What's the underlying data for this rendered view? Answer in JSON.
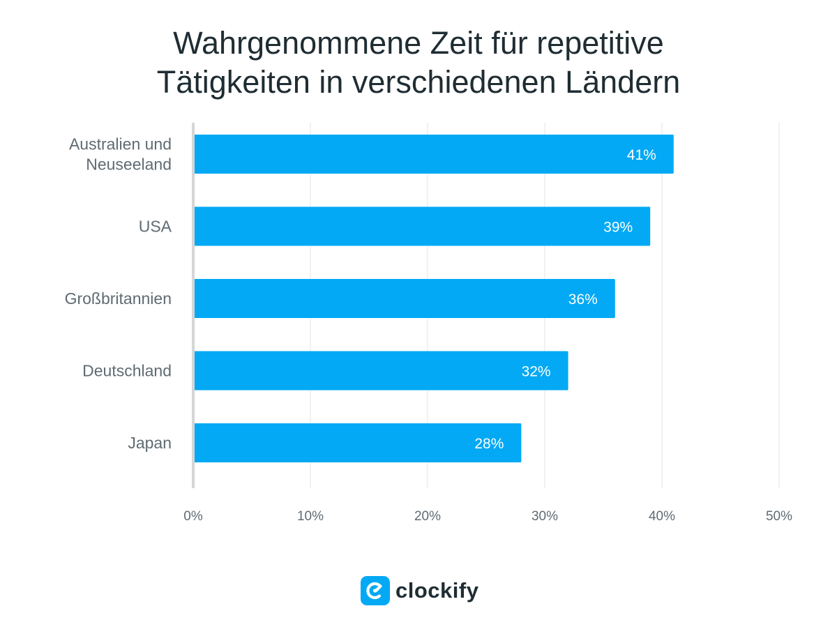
{
  "chart_data": {
    "type": "bar",
    "orientation": "horizontal",
    "title": [
      "Wahrgenommene Zeit für repetitive",
      "Tätigkeiten in verschiedenen Ländern"
    ],
    "categories": [
      [
        "Australien und",
        "Neuseeland"
      ],
      [
        "USA"
      ],
      [
        "Großbritannien"
      ],
      [
        "Deutschland"
      ],
      [
        "Japan"
      ]
    ],
    "values": [
      41,
      39,
      36,
      32,
      28
    ],
    "value_labels": [
      "41%",
      "39%",
      "36%",
      "32%",
      "28%"
    ],
    "xlim": [
      0,
      50
    ],
    "xticks": [
      0,
      10,
      20,
      30,
      40,
      50
    ],
    "xtick_labels": [
      "0%",
      "10%",
      "20%",
      "30%",
      "40%",
      "50%"
    ],
    "grid": true,
    "bar_color": "#03a9f4"
  },
  "colors": {
    "bar": "#03a9f4",
    "title": "#1f2d33",
    "label": "#5f6b72",
    "grid": "#e6e6e6",
    "axis": "#d6d6d6",
    "value_label": "#ffffff",
    "logo_mark": "#03a9f4"
  },
  "logo": {
    "text": "clockify",
    "icon": "clockify-logo-icon"
  }
}
